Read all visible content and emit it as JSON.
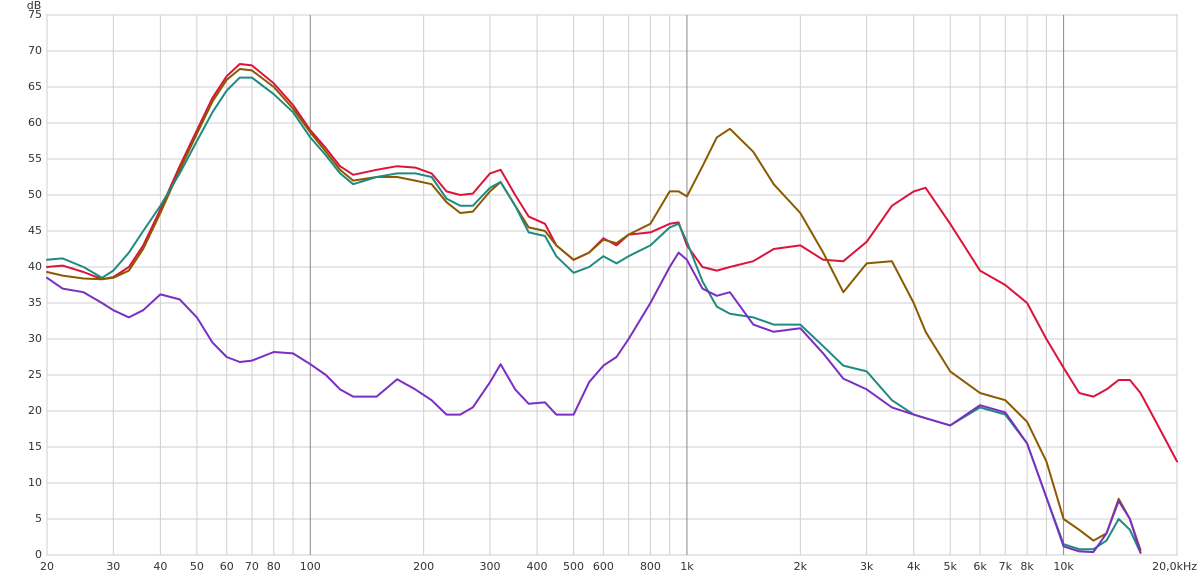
{
  "chart_data": {
    "type": "line",
    "y_label": "dB",
    "xlog": true,
    "xlim": [
      20,
      20000
    ],
    "ylim": [
      0,
      75
    ],
    "yticks": [
      0,
      5,
      10,
      15,
      20,
      25,
      30,
      35,
      40,
      45,
      50,
      55,
      60,
      65,
      70,
      75
    ],
    "xticks": [
      20,
      30,
      40,
      50,
      60,
      70,
      80,
      100,
      200,
      300,
      400,
      500,
      600,
      800,
      {
        "value": 1000,
        "label": "1k"
      },
      {
        "value": 2000,
        "label": "2k"
      },
      {
        "value": 3000,
        "label": "3k"
      },
      {
        "value": 4000,
        "label": "4k"
      },
      {
        "value": 5000,
        "label": "5k"
      },
      {
        "value": 6000,
        "label": "6k"
      },
      {
        "value": 7000,
        "label": "7k"
      },
      {
        "value": 8000,
        "label": "8k"
      },
      {
        "value": 10000,
        "label": "10k"
      },
      {
        "value": 20000,
        "label": "20,0kHz"
      }
    ],
    "xgrid_minor": [
      90,
      700,
      900,
      9000
    ],
    "major_gridlines": [
      100,
      1000,
      10000
    ],
    "grid": true,
    "x": [
      20,
      22,
      25,
      28,
      30,
      33,
      36,
      40,
      45,
      50,
      55,
      60,
      65,
      70,
      80,
      90,
      100,
      110,
      120,
      130,
      150,
      170,
      190,
      210,
      230,
      250,
      270,
      300,
      320,
      350,
      380,
      420,
      450,
      500,
      550,
      600,
      650,
      700,
      800,
      900,
      950,
      1000,
      1100,
      1200,
      1300,
      1500,
      1700,
      2000,
      2300,
      2600,
      3000,
      3500,
      4000,
      4300,
      5000,
      6000,
      7000,
      8000,
      9000,
      10000,
      11000,
      12000,
      13000,
      14000,
      15000,
      16000,
      18000,
      20000
    ],
    "series": [
      {
        "color": "#dc143c",
        "values": [
          40,
          40.2,
          39.3,
          38.3,
          38.6,
          40,
          43,
          48,
          54,
          59,
          63.5,
          66.5,
          68.2,
          68,
          65.5,
          62.5,
          59,
          56.5,
          54,
          52.8,
          53.5,
          54,
          53.8,
          53,
          50.5,
          50,
          50.2,
          53,
          53.5,
          50,
          47,
          46,
          43,
          41,
          42,
          44,
          43,
          44.5,
          44.8,
          46,
          46.2,
          43,
          40,
          39.5,
          40,
          40.8,
          42.5,
          43,
          41,
          40.8,
          43.5,
          48.5,
          50.5,
          51,
          46,
          39.5,
          37.5,
          35,
          30,
          26,
          22.5,
          22,
          23,
          24.3,
          24.3,
          22.5,
          17.5,
          13
        ]
      },
      {
        "color": "#8b5a00",
        "values": [
          39.3,
          38.8,
          38.4,
          38.3,
          38.5,
          39.5,
          42.5,
          47.5,
          53.5,
          58.5,
          63,
          66,
          67.5,
          67.3,
          65,
          62,
          58.7,
          56,
          53.5,
          52,
          52.5,
          52.5,
          52,
          51.5,
          49,
          47.5,
          47.7,
          50.5,
          51.8,
          48.5,
          45.5,
          45,
          43,
          41,
          42,
          43.8,
          43.3,
          44.5,
          46,
          50.5,
          50.5,
          49.8,
          54,
          58,
          59.2,
          56,
          51.5,
          47.5,
          42,
          36.5,
          40.5,
          40.8,
          35,
          31,
          25.5,
          22.5,
          21.5,
          18.5,
          13,
          5,
          3.5,
          2,
          3,
          7.8,
          5,
          0.7,
          null,
          null
        ]
      },
      {
        "color": "#1f8a80",
        "values": [
          41,
          41.2,
          40,
          38.5,
          39.5,
          42,
          45,
          48.5,
          53,
          57.5,
          61.5,
          64.5,
          66.3,
          66.3,
          64,
          61.5,
          58,
          55.5,
          53,
          51.5,
          52.5,
          53,
          53,
          52.5,
          49.5,
          48.5,
          48.5,
          51,
          51.8,
          48.5,
          44.8,
          44.3,
          41.5,
          39.2,
          40,
          41.5,
          40.5,
          41.5,
          43,
          45.5,
          46,
          43.5,
          38,
          34.5,
          33.5,
          33,
          32,
          32,
          29,
          26.3,
          25.5,
          21.5,
          19.5,
          19,
          18,
          20.5,
          19.5,
          15.5,
          8,
          1.5,
          0.8,
          0.8,
          2,
          5,
          3.5,
          0.3,
          null,
          null
        ]
      },
      {
        "color": "#7a2ec4",
        "values": [
          38.5,
          37,
          36.5,
          35,
          34,
          33,
          34,
          36.2,
          35.5,
          33,
          29.5,
          27.5,
          26.8,
          27,
          28.2,
          28,
          26.5,
          25,
          23,
          22,
          22,
          24.4,
          23,
          21.5,
          19.5,
          19.5,
          20.5,
          24,
          26.5,
          23,
          21,
          21.2,
          19.5,
          19.5,
          24,
          26.3,
          27.5,
          30,
          35,
          40,
          42,
          41,
          37,
          36,
          36.5,
          32,
          31,
          31.5,
          28,
          24.5,
          23,
          20.5,
          19.5,
          19,
          18,
          20.8,
          19.8,
          15.5,
          8,
          1.2,
          0.5,
          0.4,
          3,
          7.5,
          5,
          0.3,
          null,
          null
        ]
      }
    ]
  }
}
